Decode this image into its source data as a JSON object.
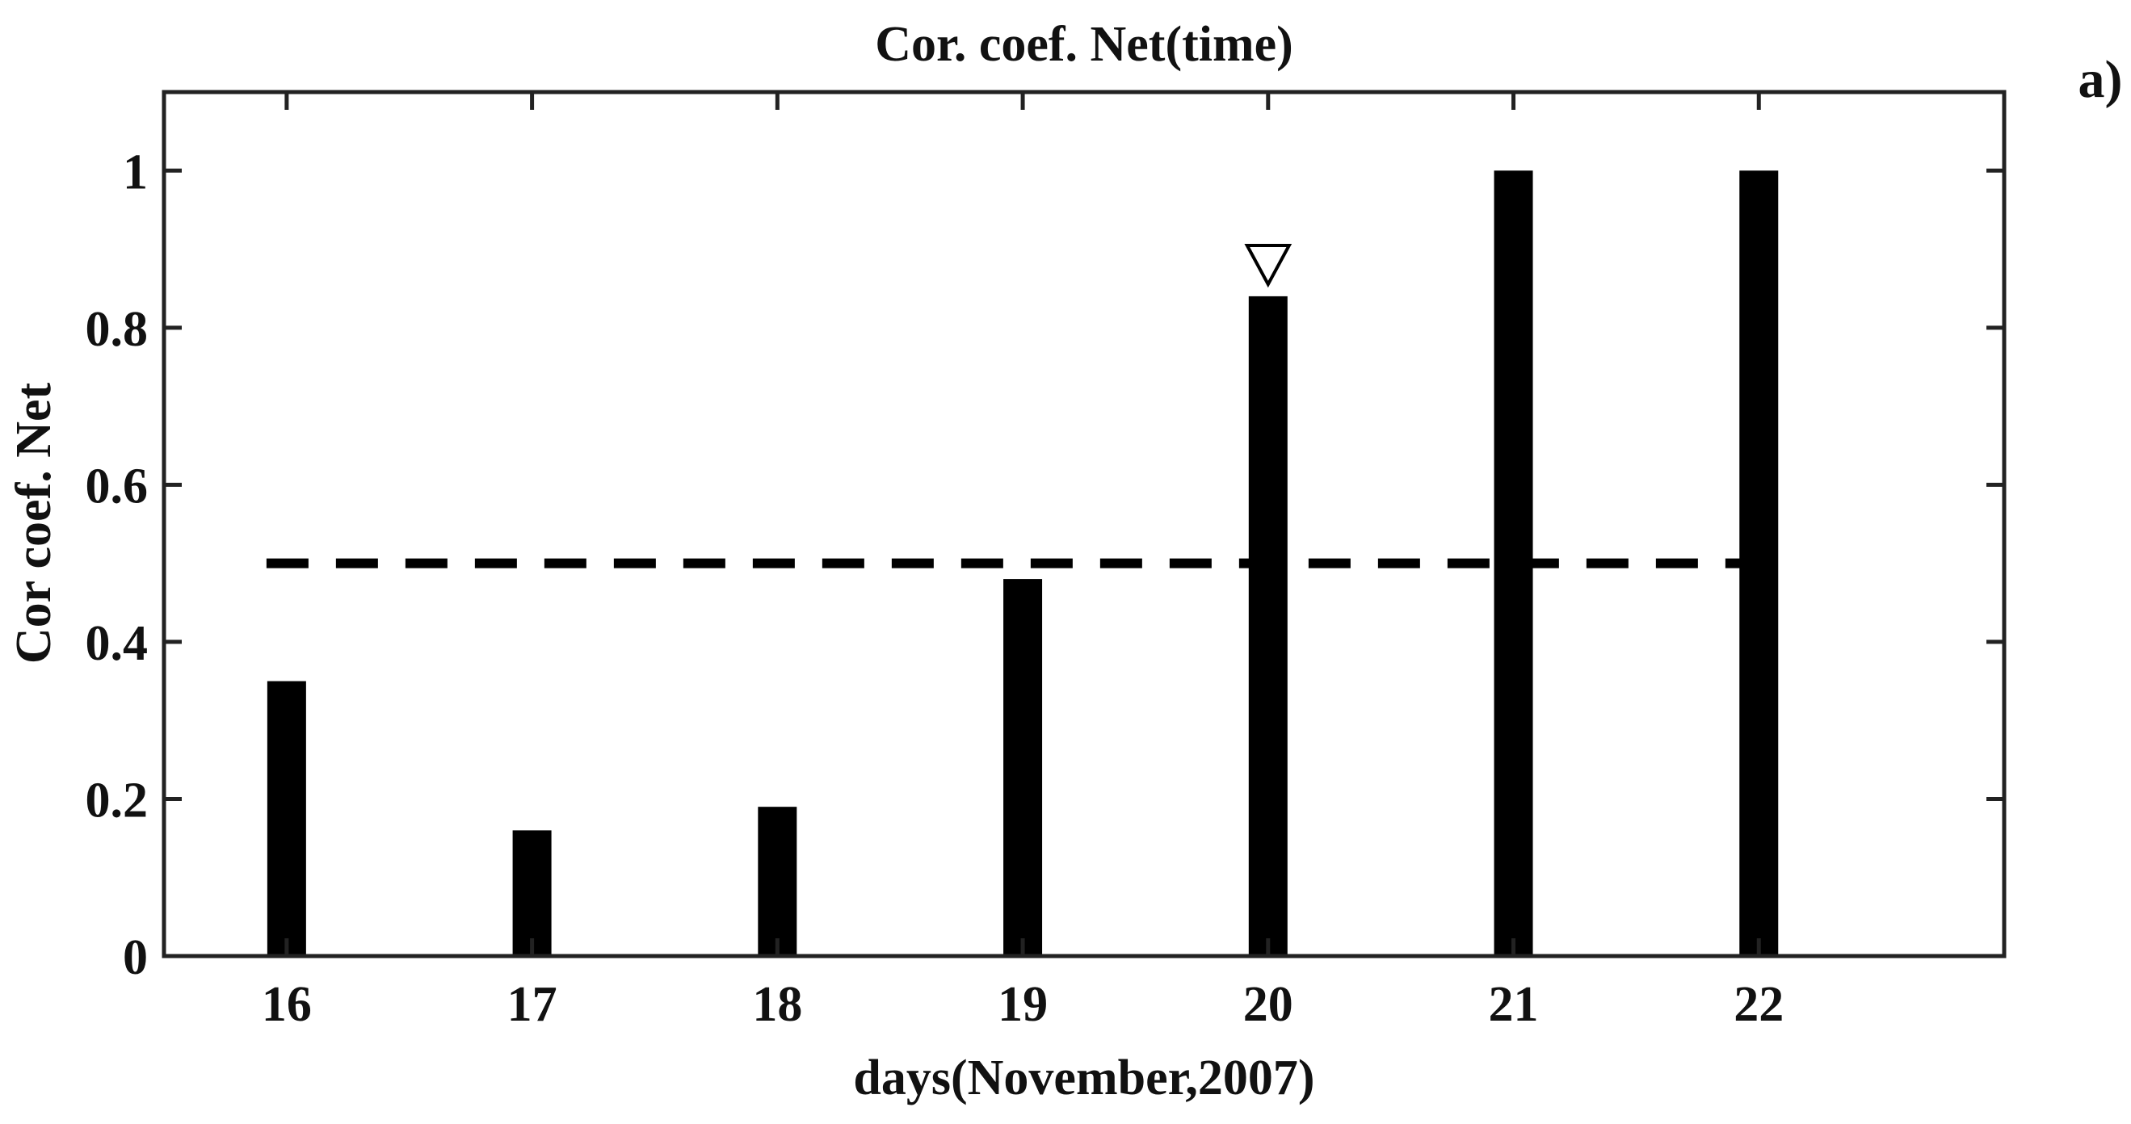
{
  "chart_data": {
    "type": "bar",
    "title": "Cor. coef. Net(time)",
    "panel_label": "a)",
    "xlabel": "days(November,2007)",
    "ylabel": "Cor coef. Net",
    "categories": [
      "16",
      "17",
      "18",
      "19",
      "20",
      "21",
      "22"
    ],
    "x": [
      16,
      17,
      18,
      19,
      20,
      21,
      22
    ],
    "values": [
      0.35,
      0.16,
      0.19,
      0.48,
      0.84,
      1.0,
      1.0
    ],
    "xlim": [
      15.5,
      23.0
    ],
    "ylim": [
      0,
      1.1
    ],
    "yticks": [
      0,
      0.2,
      0.4,
      0.6,
      0.8,
      1
    ],
    "ytick_labels": [
      "0",
      "0.2",
      "0.4",
      "0.6",
      "0.8",
      "1"
    ],
    "threshold": {
      "value": 0.5,
      "x_range": [
        16,
        22
      ],
      "style": "dashed"
    },
    "marker": {
      "x": 20,
      "y": 0.88,
      "symbol": "open-down-triangle"
    },
    "grid": false,
    "colors": {
      "bars": "#000000",
      "axes": "#222222",
      "text": "#111111"
    }
  }
}
